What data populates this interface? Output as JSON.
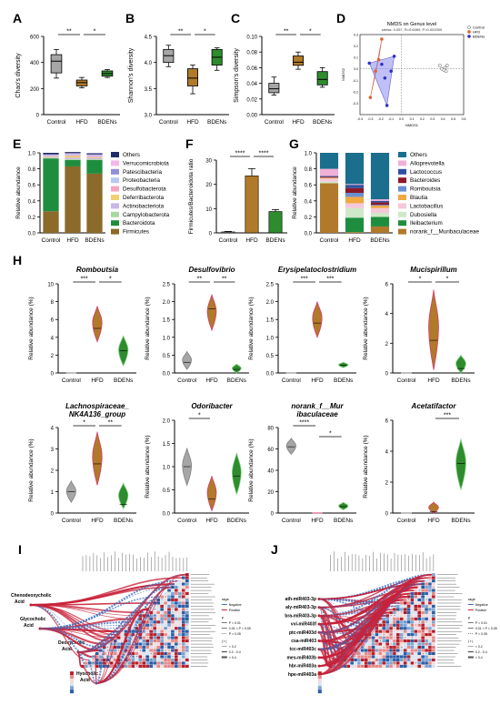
{
  "figure": {
    "panel_labels": [
      "A",
      "B",
      "C",
      "D",
      "E",
      "F",
      "G",
      "H",
      "I",
      "J"
    ]
  },
  "colors": {
    "control": "#a6a6a6",
    "hfd": "#b07a2a",
    "bdens": "#2e8b2e",
    "hfd_edge": "#d63a6b",
    "grid": "#000000"
  },
  "chart_data": [
    {
      "id": "A",
      "type": "box",
      "ylabel": "Chao's diversity",
      "categories": [
        "Control",
        "HFD",
        "BDENs"
      ],
      "ylim": [
        0,
        600
      ],
      "yticks": [
        0,
        200,
        400,
        600
      ],
      "boxes": [
        {
          "q1": 320,
          "median": 410,
          "q3": 460,
          "min": 280,
          "max": 500
        },
        {
          "q1": 220,
          "median": 245,
          "q3": 265,
          "min": 205,
          "max": 285
        },
        {
          "q1": 295,
          "median": 315,
          "q3": 335,
          "min": 285,
          "max": 345
        }
      ],
      "sig": [
        {
          "from": 0,
          "to": 1,
          "label": "**",
          "level": 0
        },
        {
          "from": 1,
          "to": 2,
          "label": "*",
          "level": 0
        }
      ]
    },
    {
      "id": "B",
      "type": "box",
      "ylabel": "Shannon's diversity",
      "categories": [
        "Control",
        "HFD",
        "BDENs"
      ],
      "ylim": [
        3.0,
        4.5
      ],
      "yticks": [
        3.0,
        3.5,
        4.0,
        4.5
      ],
      "boxes": [
        {
          "q1": 4.0,
          "median": 4.13,
          "q3": 4.25,
          "min": 3.92,
          "max": 4.33
        },
        {
          "q1": 3.55,
          "median": 3.7,
          "q3": 3.88,
          "min": 3.4,
          "max": 3.95
        },
        {
          "q1": 3.95,
          "median": 4.1,
          "q3": 4.25,
          "min": 3.85,
          "max": 4.28
        }
      ],
      "sig": [
        {
          "from": 0,
          "to": 1,
          "label": "**",
          "level": 0
        },
        {
          "from": 1,
          "to": 2,
          "label": "*",
          "level": 0
        }
      ]
    },
    {
      "id": "C",
      "type": "box",
      "ylabel": "Simpson's diversity",
      "categories": [
        "Control",
        "HFD",
        "BDENs"
      ],
      "ylim": [
        0.0,
        0.1
      ],
      "yticks": [
        0.0,
        0.02,
        0.04,
        0.06,
        0.08,
        0.1
      ],
      "boxes": [
        {
          "q1": 0.028,
          "median": 0.033,
          "q3": 0.04,
          "min": 0.025,
          "max": 0.048
        },
        {
          "q1": 0.063,
          "median": 0.067,
          "q3": 0.075,
          "min": 0.058,
          "max": 0.08
        },
        {
          "q1": 0.038,
          "median": 0.045,
          "q3": 0.055,
          "min": 0.035,
          "max": 0.06
        }
      ],
      "sig": [
        {
          "from": 0,
          "to": 1,
          "label": "**",
          "level": 0
        },
        {
          "from": 1,
          "to": 2,
          "label": "*",
          "level": 0
        }
      ]
    },
    {
      "id": "D",
      "type": "scatter",
      "title": "NMDS on Genus level",
      "subtitle": "stress: 0.057, R=0.6069, P=0.002000",
      "xlabel": "NMDS1",
      "ylabel": "NMDS2",
      "xlim": [
        -0.4,
        0.6
      ],
      "ylim": [
        -0.4,
        0.3
      ],
      "xticks": [
        -0.4,
        -0.3,
        -0.2,
        -0.1,
        0.0,
        0.1,
        0.2,
        0.3,
        0.4,
        0.5,
        0.6
      ],
      "yticks": [
        -0.3,
        -0.2,
        -0.1,
        0.0,
        0.1,
        0.2,
        0.3
      ],
      "series": [
        {
          "name": "Control",
          "points": [
            [
              0.37,
              0.03
            ],
            [
              0.42,
              0.01
            ],
            [
              0.39,
              0.0
            ],
            [
              0.44,
              0.03
            ],
            [
              0.41,
              -0.01
            ],
            [
              0.43,
              -0.02
            ]
          ]
        },
        {
          "name": "HFD",
          "points": [
            [
              -0.3,
              -0.25
            ],
            [
              -0.25,
              -0.02
            ],
            [
              -0.19,
              0.26
            ],
            [
              -0.22,
              0.08
            ]
          ]
        },
        {
          "name": "BDENs",
          "points": [
            [
              -0.31,
              0.05
            ],
            [
              -0.16,
              -0.08
            ],
            [
              -0.14,
              -0.32
            ],
            [
              -0.07,
              0.11
            ],
            [
              -0.19,
              0.04
            ],
            [
              -0.1,
              -0.02
            ]
          ]
        }
      ]
    },
    {
      "id": "E",
      "type": "stacked_bar",
      "ylabel": "Relative abundance",
      "categories": [
        "Control",
        "HFD",
        "BDENs"
      ],
      "ylim": [
        0,
        1.0
      ],
      "yticks": [
        0.0,
        0.2,
        0.4,
        0.6,
        0.8,
        1.0
      ],
      "series": [
        {
          "name": "Firmicutes",
          "values": [
            0.27,
            0.83,
            0.74
          ]
        },
        {
          "name": "Bacteroidota",
          "values": [
            0.66,
            0.08,
            0.17
          ]
        },
        {
          "name": "Campylobacterota",
          "values": [
            0.01,
            0.01,
            0.01
          ]
        },
        {
          "name": "Actinobacteriota",
          "values": [
            0.005,
            0.02,
            0.015
          ]
        },
        {
          "name": "Deferribacterota",
          "values": [
            0.005,
            0.02,
            0.01
          ]
        },
        {
          "name": "Desulfobacterota",
          "values": [
            0.01,
            0.01,
            0.01
          ]
        },
        {
          "name": "Proteobacteria",
          "values": [
            0.01,
            0.01,
            0.01
          ]
        },
        {
          "name": "Patescibacteria",
          "values": [
            0.005,
            0.005,
            0.005
          ]
        },
        {
          "name": "Verrucomicrobiota",
          "values": [
            0.005,
            0.01,
            0.01
          ]
        },
        {
          "name": "Others",
          "values": [
            0.02,
            0.015,
            0.015
          ]
        }
      ],
      "legend_order": [
        "Others",
        "Verrucomicrobiota",
        "Patescibacteria",
        "Proteobacteria",
        "Desulfobacterota",
        "Deferribacterota",
        "Actinobacteriota",
        "Campylobacterota",
        "Bacteroidota",
        "Firmicutes"
      ],
      "series_colors": [
        "#8b6a2a",
        "#1e8e3e",
        "#a8d8a0",
        "#c8b8e8",
        "#f0d070",
        "#f4a6c0",
        "#b8c8f0",
        "#9090d8",
        "#f2b8e8",
        "#1f2d6a"
      ]
    },
    {
      "id": "F",
      "type": "bar",
      "ylabel": "Firmicutes/Bacteroidota ratio",
      "categories": [
        "Control",
        "HFD",
        "BDENs"
      ],
      "values": [
        0.4,
        23.5,
        8.8
      ],
      "errors": [
        0.2,
        3.0,
        0.8
      ],
      "ylim": [
        0,
        30
      ],
      "yticks": [
        0,
        10,
        20,
        30
      ],
      "sig": [
        {
          "from": 0,
          "to": 1,
          "label": "****",
          "level": 0
        },
        {
          "from": 1,
          "to": 2,
          "label": "****",
          "level": 0
        }
      ]
    },
    {
      "id": "G",
      "type": "stacked_bar",
      "ylabel": "Relative abundance",
      "categories": [
        "Control",
        "HFD",
        "BDENs"
      ],
      "ylim": [
        0,
        1.0
      ],
      "yticks": [
        0.0,
        0.2,
        0.4,
        0.6,
        0.8,
        1.0
      ],
      "series": [
        {
          "name": "norank_f__Muribaculaceae",
          "values": [
            0.62,
            0.01,
            0.08
          ]
        },
        {
          "name": "Ileibacterium",
          "values": [
            0.0,
            0.18,
            0.12
          ]
        },
        {
          "name": "Dubosiella",
          "values": [
            0.02,
            0.12,
            0.05
          ]
        },
        {
          "name": "Lactobacillus",
          "values": [
            0.04,
            0.06,
            0.06
          ]
        },
        {
          "name": "Blautia",
          "values": [
            0.01,
            0.08,
            0.03
          ]
        },
        {
          "name": "Romboutsia",
          "values": [
            0.0,
            0.05,
            0.01
          ]
        },
        {
          "name": "Bacteroides",
          "values": [
            0.01,
            0.06,
            0.03
          ]
        },
        {
          "name": "Lactococcus",
          "values": [
            0.01,
            0.04,
            0.02
          ]
        },
        {
          "name": "Alloprevotella",
          "values": [
            0.09,
            0.01,
            0.02
          ]
        },
        {
          "name": "Others",
          "values": [
            0.2,
            0.39,
            0.58
          ]
        }
      ],
      "legend_order": [
        "Others",
        "Alloprevotella",
        "Lactococcus",
        "Bacteroides",
        "Romboutsia",
        "Blautia",
        "Lactobacillus",
        "Dubosiella",
        "Ileibacterium",
        "norank_f__Muribaculaceae"
      ],
      "series_colors": [
        "#b07a2a",
        "#1e8e3e",
        "#cfe8c8",
        "#f5c8d8",
        "#f0a840",
        "#6a8fd0",
        "#8a1a2a",
        "#3050a0",
        "#f0b0d8",
        "#1a6e8e"
      ]
    },
    {
      "id": "H1",
      "type": "violin",
      "title": "Romboutsia",
      "ylabel": "Relative abundance (%)",
      "categories": [
        "Control",
        "HFD",
        "BDENs"
      ],
      "ylim": [
        0,
        10
      ],
      "yticks": [
        0,
        2,
        4,
        6,
        8,
        10
      ],
      "violins": [
        {
          "min": 0,
          "max": 0,
          "median": 0
        },
        {
          "min": 3.5,
          "max": 7.5,
          "median": 5.0
        },
        {
          "min": 0.8,
          "max": 4.2,
          "median": 2.5
        }
      ],
      "sig": [
        {
          "from": 0,
          "to": 1,
          "label": "***",
          "level": 0
        },
        {
          "from": 1,
          "to": 2,
          "label": "*",
          "level": 0
        }
      ]
    },
    {
      "id": "H2",
      "type": "violin",
      "title": "Desulfovibrio",
      "ylabel": "Relative abundance (%)",
      "categories": [
        "Control",
        "HFD",
        "BDENs"
      ],
      "ylim": [
        0,
        2.5
      ],
      "yticks": [
        0.0,
        0.5,
        1.0,
        1.5,
        2.0,
        2.5
      ],
      "violins": [
        {
          "min": 0.1,
          "max": 0.6,
          "median": 0.3
        },
        {
          "min": 1.2,
          "max": 2.2,
          "median": 1.8
        },
        {
          "min": 0.0,
          "max": 0.25,
          "median": 0.1
        }
      ],
      "sig": [
        {
          "from": 0,
          "to": 1,
          "label": "**",
          "level": 0
        },
        {
          "from": 1,
          "to": 2,
          "label": "**",
          "level": 0
        }
      ]
    },
    {
      "id": "H3",
      "type": "violin",
      "title": "Erysipelatoclostridium",
      "ylabel": "Relative abundance (%)",
      "categories": [
        "Control",
        "HFD",
        "BDENs"
      ],
      "ylim": [
        0,
        2.5
      ],
      "yticks": [
        0.0,
        0.5,
        1.0,
        1.5,
        2.0,
        2.5
      ],
      "violins": [
        {
          "min": 0,
          "max": 0,
          "median": 0
        },
        {
          "min": 1.0,
          "max": 2.0,
          "median": 1.4
        },
        {
          "min": 0.15,
          "max": 0.3,
          "median": 0.22
        }
      ],
      "sig": [
        {
          "from": 0,
          "to": 1,
          "label": "***",
          "level": 0
        },
        {
          "from": 1,
          "to": 2,
          "label": "***",
          "level": 0
        }
      ]
    },
    {
      "id": "H4",
      "type": "violin",
      "title": "Mucispirillum",
      "ylabel": "Relative abundance (%)",
      "categories": [
        "Control",
        "HFD",
        "BDENs"
      ],
      "ylim": [
        0,
        6
      ],
      "yticks": [
        0,
        2,
        4,
        6
      ],
      "violins": [
        {
          "min": 0,
          "max": 0,
          "median": 0
        },
        {
          "min": 0.2,
          "max": 5.6,
          "median": 2.2
        },
        {
          "min": 0.0,
          "max": 1.2,
          "median": 0.3
        }
      ],
      "sig": [
        {
          "from": 0,
          "to": 1,
          "label": "*",
          "level": 0
        },
        {
          "from": 1,
          "to": 2,
          "label": "*",
          "level": 0
        }
      ]
    },
    {
      "id": "H5",
      "type": "violin",
      "title": "Lachnospiraceae_\nNK4A136_group",
      "ylabel": "Relative abundance (%)",
      "categories": [
        "Control",
        "HFD",
        "BDENs"
      ],
      "ylim": [
        0,
        4
      ],
      "yticks": [
        0,
        1,
        2,
        3,
        4
      ],
      "violins": [
        {
          "min": 0.5,
          "max": 1.5,
          "median": 1.0
        },
        {
          "min": 1.3,
          "max": 3.8,
          "median": 2.3
        },
        {
          "min": 0.2,
          "max": 1.4,
          "median": 0.4
        }
      ],
      "sig": [
        {
          "from": 0,
          "to": 1,
          "label": "*",
          "level": 0
        },
        {
          "from": 1,
          "to": 2,
          "label": "**",
          "level": 0
        }
      ]
    },
    {
      "id": "H6",
      "type": "violin",
      "title": "Odoribacter",
      "ylabel": "Relative abundance (%)",
      "categories": [
        "Control",
        "HFD",
        "BDENs"
      ],
      "ylim": [
        0,
        2.0
      ],
      "yticks": [
        0.0,
        0.5,
        1.0,
        1.5,
        2.0
      ],
      "violins": [
        {
          "min": 0.6,
          "max": 1.4,
          "median": 1.0
        },
        {
          "min": 0.05,
          "max": 0.8,
          "median": 0.3
        },
        {
          "min": 0.4,
          "max": 1.3,
          "median": 0.8
        }
      ],
      "sig": [
        {
          "from": 0,
          "to": 1,
          "label": "*",
          "level": 0
        }
      ]
    },
    {
      "id": "H7",
      "type": "violin",
      "title": "norank_f__Mur\nibaculaceae",
      "ylabel": "Relative abundance (%)",
      "categories": [
        "Control",
        "HFD",
        "BDENs"
      ],
      "ylim": [
        0,
        80
      ],
      "yticks": [
        0,
        20,
        40,
        60,
        80
      ],
      "violins": [
        {
          "min": 55,
          "max": 70,
          "median": 62
        },
        {
          "min": 0,
          "max": 1,
          "median": 0.5
        },
        {
          "min": 3,
          "max": 10,
          "median": 6
        }
      ],
      "sig": [
        {
          "from": 0,
          "to": 1,
          "label": "****",
          "level": 0
        },
        {
          "from": 1,
          "to": 2,
          "label": "*",
          "level": -2
        }
      ]
    },
    {
      "id": "H8",
      "type": "violin",
      "title": "Acetatifactor",
      "ylabel": "Relative abundance (%)",
      "categories": [
        "Control",
        "HFD",
        "BDENs"
      ],
      "ylim": [
        0,
        6
      ],
      "yticks": [
        0,
        2,
        4,
        6
      ],
      "violins": [
        {
          "min": 0,
          "max": 0,
          "median": 0
        },
        {
          "min": 0.0,
          "max": 0.7,
          "median": 0.1
        },
        {
          "min": 1.5,
          "max": 4.8,
          "median": 3.2
        }
      ],
      "sig": [
        {
          "from": 1,
          "to": 2,
          "label": "***",
          "level": 0
        }
      ]
    },
    {
      "id": "I",
      "type": "heatmap",
      "left_labels": [
        "Chenodeoxycholic Acid",
        "Glycocholic Acid",
        "Deoxycholic Acid",
        "Hyocholic Acid"
      ],
      "rows": 30,
      "cols": 30,
      "legend": {
        "rage_title": "rage",
        "rage_items": [
          "Negative",
          "Positive"
        ],
        "p_title": "p",
        "p_items": [
          "P < 0.01",
          "0.01 < P < 0.05",
          "P > 0.05"
        ],
        "r_title": "| r |",
        "r_items": [
          "< 0.2",
          "0.2 - 0.4",
          "> 0.4"
        ]
      }
    },
    {
      "id": "J",
      "type": "heatmap",
      "left_labels": [
        "ath-miR403-3p",
        "aly-miR403-3p",
        "bra-miR403-3p",
        "vvi-miR403f",
        "ptc-miR403d",
        "csa-miR403",
        "tcc-miR403c",
        "mes-miR403b",
        "hbr-miR403a",
        "hpe-miR403a"
      ],
      "rows": 30,
      "cols": 30,
      "legend": {
        "rage_title": "rage",
        "rage_items": [
          "Negative",
          "Positive"
        ],
        "p_title": "p",
        "p_items": [
          "P < 0.01",
          "0.01 < P < 0.05",
          "P > 0.05"
        ],
        "r_title": "| r |",
        "r_items": [
          "< 0.2",
          "0.2 - 0.4",
          "> 0.4"
        ]
      }
    }
  ]
}
